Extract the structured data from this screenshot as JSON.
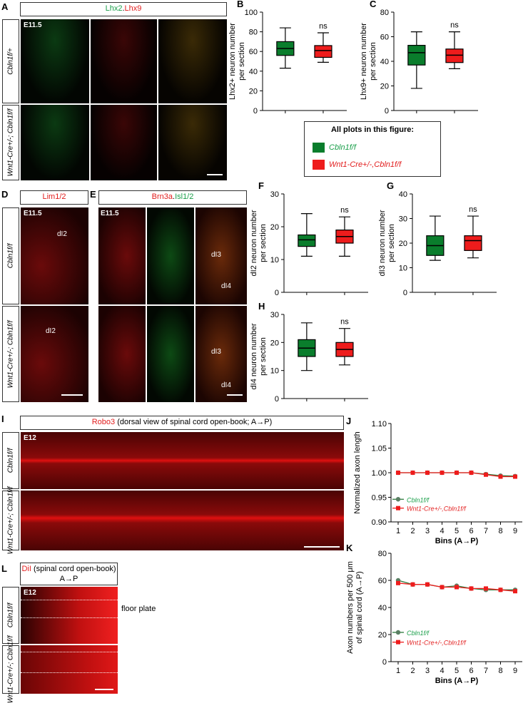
{
  "colors": {
    "green": "#0a7d2c",
    "red": "#ee1c1c",
    "sigred": "#e32222",
    "siggreen": "#1a9f4a"
  },
  "panels": {
    "A": {
      "letter": "A",
      "stain_green": "Lhx2",
      "stain_sep": ".",
      "stain_red": "Lhx9",
      "stage": "E11.5",
      "row1": "Cbln1f/+",
      "row2": "Wnt1-Cre+/-; Cbln1f/f"
    },
    "D": {
      "letter": "D",
      "stain": "Lim1/2",
      "stage": "E11.5",
      "row1": "Cbln1f/f",
      "row2": "Wnt1-Cre+/-; Cbln1f/f",
      "label_top": "dI2",
      "label_bot": "dI2"
    },
    "E": {
      "letter": "E",
      "stain_red": "Brn3a",
      "stain_sep": ".",
      "stain_green": "Isl1/2",
      "stage": "E11.5",
      "lbl1": "dI3",
      "lbl2": "dI4",
      "lbl3": "dI3",
      "lbl4": "dI4"
    },
    "I": {
      "letter": "I",
      "stain_red": "Robo3",
      "stain_rest": " (dorsal view of spinal cord open-book; A→P)",
      "stage": "E12",
      "row1": "Cbln1f/f",
      "row2": "Wnt1-Cre+/-; Cbln1f/f"
    },
    "L": {
      "letter": "L",
      "stain_red": "DiI",
      "stain_rest": " (spinal cord open-book) A→P",
      "stage": "E12",
      "row1": "Cbln1f/f",
      "row2": "Wnt1-Cre+/-; Cbln1f/f",
      "floor": "floor plate"
    },
    "J": {
      "letter": "J"
    },
    "K": {
      "letter": "K"
    }
  },
  "legend": {
    "title": "All plots in this figure:",
    "item1": "Cbln1f/f",
    "item2": "Wnt1-Cre+/-,Cbln1f/f"
  },
  "chart_data": [
    {
      "id": "B",
      "type": "box",
      "ylabel": "Lhx2+ neuron number per section",
      "ylim": [
        0,
        100
      ],
      "yticks": [
        0,
        20,
        40,
        60,
        80,
        100
      ],
      "sig": "ns",
      "series": [
        {
          "name": "Cbln1f/f",
          "min": 43,
          "q1": 56,
          "median": 63,
          "q3": 70,
          "max": 84
        },
        {
          "name": "Wnt1-Cre+/-,Cbln1f/f",
          "min": 49,
          "q1": 54,
          "median": 61,
          "q3": 66,
          "max": 79
        }
      ]
    },
    {
      "id": "C",
      "type": "box",
      "ylabel": "Lhx9+ neuron number per section",
      "ylim": [
        0,
        80
      ],
      "yticks": [
        0,
        20,
        40,
        60,
        80
      ],
      "sig": "ns",
      "series": [
        {
          "name": "Cbln1f/f",
          "min": 18,
          "q1": 37,
          "median": 47,
          "q3": 53,
          "max": 64
        },
        {
          "name": "Wnt1-Cre+/-,Cbln1f/f",
          "min": 34,
          "q1": 39,
          "median": 45,
          "q3": 50,
          "max": 64
        }
      ]
    },
    {
      "id": "F",
      "type": "box",
      "ylabel": "dI2 neuron number per section",
      "ylim": [
        0,
        30
      ],
      "yticks": [
        0,
        10,
        20,
        30
      ],
      "sig": "ns",
      "series": [
        {
          "name": "Cbln1f/f",
          "min": 11,
          "q1": 14,
          "median": 16,
          "q3": 17.5,
          "max": 24
        },
        {
          "name": "Wnt1-Cre+/-,Cbln1f/f",
          "min": 11,
          "q1": 15,
          "median": 17,
          "q3": 19,
          "max": 23
        }
      ]
    },
    {
      "id": "G",
      "type": "box",
      "ylabel": "dI3 neuron number per section",
      "ylim": [
        0,
        40
      ],
      "yticks": [
        0,
        10,
        20,
        30,
        40
      ],
      "sig": "ns",
      "series": [
        {
          "name": "Cbln1f/f",
          "min": 13,
          "q1": 15,
          "median": 19,
          "q3": 23,
          "max": 31
        },
        {
          "name": "Wnt1-Cre+/-,Cbln1f/f",
          "min": 14,
          "q1": 17,
          "median": 21,
          "q3": 23,
          "max": 31
        }
      ]
    },
    {
      "id": "H",
      "type": "box",
      "ylabel": "dI4 neuron number per section",
      "ylim": [
        0,
        30
      ],
      "yticks": [
        0,
        10,
        20,
        30
      ],
      "sig": "ns",
      "series": [
        {
          "name": "Cbln1f/f",
          "min": 10,
          "q1": 15,
          "median": 18,
          "q3": 21,
          "max": 27
        },
        {
          "name": "Wnt1-Cre+/-,Cbln1f/f",
          "min": 12,
          "q1": 15,
          "median": 17.5,
          "q3": 20,
          "max": 25
        }
      ]
    },
    {
      "id": "J",
      "type": "line",
      "xlabel": "Bins (A→P)",
      "ylabel": "Normalized axon length",
      "x": [
        1,
        2,
        3,
        4,
        5,
        6,
        7,
        8,
        9
      ],
      "ylim": [
        0.9,
        1.1
      ],
      "yticks": [
        0.9,
        0.95,
        1.0,
        1.05,
        1.1
      ],
      "series": [
        {
          "name": "Cbln1f/f",
          "values": [
            1.0,
            1.0,
            1.0,
            1.0,
            1.0,
            1.0,
            0.997,
            0.994,
            0.993
          ]
        },
        {
          "name": "Wnt1-Cre+/-,Cbln1f/f",
          "values": [
            1.0,
            1.0,
            1.0,
            1.0,
            1.0,
            1.0,
            0.996,
            0.992,
            0.992
          ]
        }
      ]
    },
    {
      "id": "K",
      "type": "line",
      "xlabel": "Bins (A→P)",
      "ylabel": "Axon numbers per 500 μm of spinal cord (A→P)",
      "x": [
        1,
        2,
        3,
        4,
        5,
        6,
        7,
        8,
        9
      ],
      "ylim": [
        0,
        80
      ],
      "yticks": [
        0,
        20,
        40,
        60,
        80
      ],
      "series": [
        {
          "name": "Cbln1f/f",
          "values": [
            60,
            57,
            57,
            55,
            56,
            54,
            53,
            53,
            53
          ]
        },
        {
          "name": "Wnt1-Cre+/-,Cbln1f/f",
          "values": [
            58,
            57,
            57,
            55,
            55,
            54,
            54,
            53,
            52
          ]
        }
      ]
    }
  ]
}
